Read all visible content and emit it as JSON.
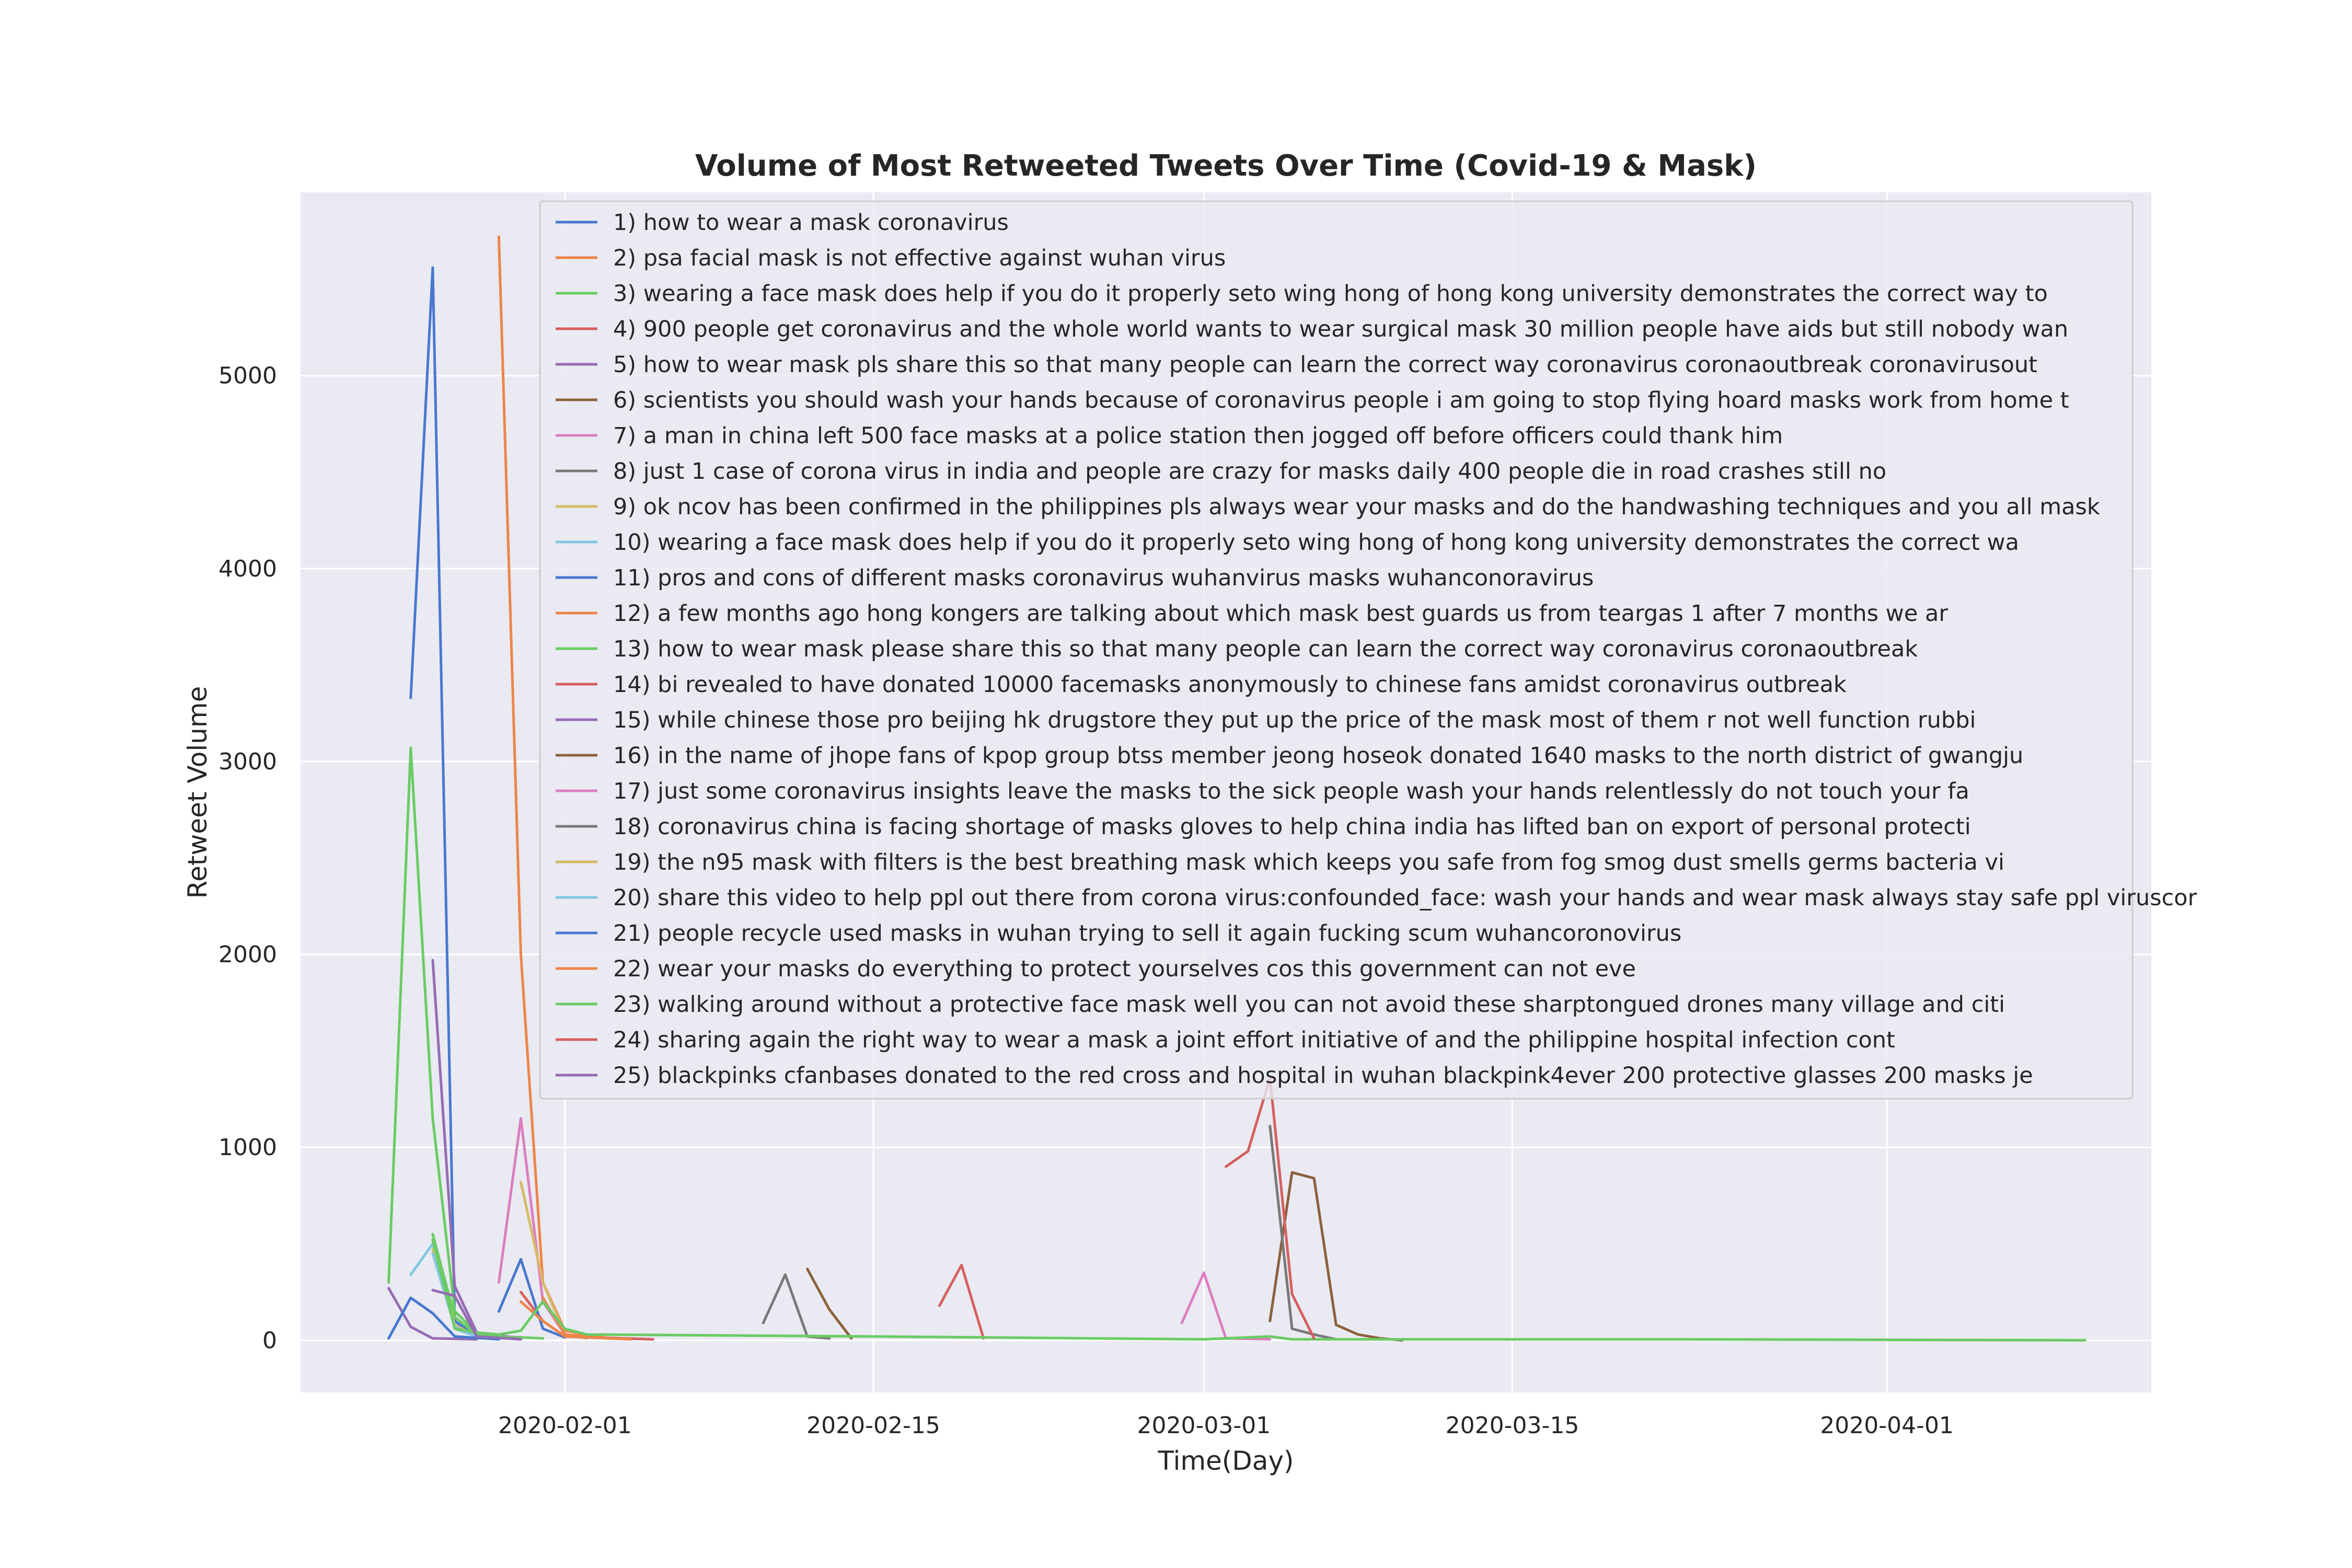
{
  "chart_data": {
    "type": "line",
    "title": "Volume of Most Retweeted Tweets Over Time (Covid-19 & Mask)",
    "xlabel": "Time(Day)",
    "ylabel": "Retweet Volume",
    "x_ticks": [
      "2020-02-01",
      "2020-02-15",
      "2020-03-01",
      "2020-03-15",
      "2020-04-01"
    ],
    "y_ticks": [
      "0",
      "1000",
      "2000",
      "3000",
      "4000",
      "5000"
    ],
    "xlim": [
      "2020-01-20",
      "2020-04-13"
    ],
    "ylim": [
      -270,
      5950
    ],
    "grid": true,
    "legend_position": "top-right",
    "colors": [
      "#4878d0",
      "#ee854a",
      "#6acc64",
      "#d65f5f",
      "#956cb4",
      "#8c613c",
      "#dc7ec0",
      "#797979",
      "#d5bb67",
      "#82c6e2"
    ],
    "series": [
      {
        "name": "1) how to wear a mask coronavirus",
        "points": [
          [
            "2020-01-25",
            3330
          ],
          [
            "2020-01-26",
            5560
          ],
          [
            "2020-01-27",
            100
          ],
          [
            "2020-01-28",
            20
          ],
          [
            "2020-01-30",
            5
          ]
        ]
      },
      {
        "name": "2) psa facial mask is not effective against wuhan virus",
        "points": [
          [
            "2020-01-29",
            5720
          ],
          [
            "2020-01-30",
            2000
          ],
          [
            "2020-01-31",
            300
          ],
          [
            "2020-02-01",
            50
          ],
          [
            "2020-02-03",
            10
          ]
        ]
      },
      {
        "name": "3) wearing a face mask does help if you do it properly seto wing hong of hong kong university demonstrates the correct way to",
        "points": [
          [
            "2020-01-24",
            300
          ],
          [
            "2020-01-25",
            3070
          ],
          [
            "2020-01-26",
            1150
          ],
          [
            "2020-01-27",
            150
          ],
          [
            "2020-01-28",
            40
          ],
          [
            "2020-01-29",
            20
          ],
          [
            "2020-01-31",
            10
          ]
        ]
      },
      {
        "name": "4) 900 people get coronavirus and the whole world wants to wear surgical mask 30 million people have aids but still nobody wan",
        "points": [
          [
            "2020-01-30",
            250
          ],
          [
            "2020-01-31",
            100
          ],
          [
            "2020-02-01",
            20
          ],
          [
            "2020-02-05",
            5
          ]
        ]
      },
      {
        "name": "5) how to wear mask  pls share this so that many people can learn the correct way coronavirus coronaoutbreak coronavirusout",
        "points": [
          [
            "2020-01-26",
            1970
          ],
          [
            "2020-01-27",
            280
          ],
          [
            "2020-01-28",
            40
          ],
          [
            "2020-01-30",
            10
          ]
        ]
      },
      {
        "name": "6) scientists you should wash your hands because of coronavirus people i am going to stop flying hoard masks work from home  t",
        "points": [
          [
            "2020-03-04",
            100
          ],
          [
            "2020-03-05",
            870
          ],
          [
            "2020-03-06",
            840
          ],
          [
            "2020-03-07",
            80
          ],
          [
            "2020-03-08",
            30
          ],
          [
            "2020-03-09",
            10
          ],
          [
            "2020-03-10",
            0
          ]
        ]
      },
      {
        "name": "7) a man in china left 500 face masks at a police station  then jogged off before officers could thank him",
        "points": [
          [
            "2020-01-29",
            300
          ],
          [
            "2020-01-30",
            1150
          ],
          [
            "2020-01-31",
            200
          ],
          [
            "2020-02-01",
            30
          ],
          [
            "2020-02-02",
            10
          ]
        ]
      },
      {
        "name": "8) just 1 case of corona virus in india and people are crazy for masks daily 400 people die in road crashes  still no",
        "points": [
          [
            "2020-02-10",
            90
          ],
          [
            "2020-02-11",
            340
          ],
          [
            "2020-02-12",
            20
          ],
          [
            "2020-02-13",
            10
          ]
        ]
      },
      {
        "name": "9) ok ncov has been confirmed in the philippines pls always wear your masks and do the handwashing techniques and you all mask",
        "points": [
          [
            "2020-01-30",
            820
          ],
          [
            "2020-01-31",
            300
          ],
          [
            "2020-02-01",
            30
          ],
          [
            "2020-02-02",
            10
          ]
        ]
      },
      {
        "name": "10) wearing a face mask does help if you do it properly seto wing hong of hong kong university demonstrates the correct wa",
        "points": [
          [
            "2020-01-25",
            340
          ],
          [
            "2020-01-26",
            500
          ],
          [
            "2020-01-27",
            60
          ],
          [
            "2020-01-28",
            20
          ]
        ]
      },
      {
        "name": "11) pros and cons of different masks  coronavirus wuhanvirus masks wuhanconoravirus",
        "points": [
          [
            "2020-01-29",
            150
          ],
          [
            "2020-01-30",
            420
          ],
          [
            "2020-01-31",
            60
          ],
          [
            "2020-02-01",
            15
          ]
        ]
      },
      {
        "name": "12) a few months ago hong kongers are talking about which mask best guards us from teargas 1 after 7 months we ar",
        "points": [
          [
            "2020-01-30",
            200
          ],
          [
            "2020-01-31",
            100
          ],
          [
            "2020-02-01",
            20
          ],
          [
            "2020-02-04",
            5
          ]
        ]
      },
      {
        "name": "13) how to wear mask  please share this so that many people can learn the correct way coronavirus coronaoutbreak",
        "points": [
          [
            "2020-01-26",
            550
          ],
          [
            "2020-01-27",
            120
          ],
          [
            "2020-01-28",
            30
          ],
          [
            "2020-01-30",
            10
          ]
        ]
      },
      {
        "name": "14) bi revealed to have donated 10000 facemasks anonymously to chinese fans amidst coronavirus outbreak",
        "points": [
          [
            "2020-02-18",
            180
          ],
          [
            "2020-02-19",
            390
          ],
          [
            "2020-02-20",
            10
          ]
        ]
      },
      {
        "name": "15) while chinese  those pro beijing hk drugstore they put up the price of the mask  most of them r not well function rubbi",
        "points": [
          [
            "2020-01-24",
            270
          ],
          [
            "2020-01-25",
            70
          ],
          [
            "2020-01-26",
            10
          ],
          [
            "2020-01-28",
            5
          ]
        ]
      },
      {
        "name": "16) in the name of jhope fans of kpop group btss member jeong hoseok donated 1640 masks to the north district of gwangju",
        "points": [
          [
            "2020-02-12",
            370
          ],
          [
            "2020-02-13",
            160
          ],
          [
            "2020-02-14",
            10
          ]
        ]
      },
      {
        "name": "17) just some coronavirus insights leave the masks to the sick people wash your hands relentlessly do not touch your fa",
        "points": [
          [
            "2020-02-29",
            90
          ],
          [
            "2020-03-01",
            350
          ],
          [
            "2020-03-02",
            10
          ],
          [
            "2020-03-04",
            5
          ]
        ]
      },
      {
        "name": "18) coronavirus china is facing shortage of masks  gloves to help china india has lifted ban on export of personal protecti",
        "points": [
          [
            "2020-03-04",
            1110
          ],
          [
            "2020-03-05",
            60
          ],
          [
            "2020-03-06",
            30
          ],
          [
            "2020-03-07",
            5
          ]
        ]
      },
      {
        "name": "19) the n95 mask with filters is the best breathing mask which keeps you safe from fog smog dust smells germs bacteria vi",
        "points": [
          [
            "2020-01-26",
            470
          ],
          [
            "2020-01-27",
            80
          ],
          [
            "2020-01-28",
            20
          ]
        ]
      },
      {
        "name": "20) share this video to help ppl out there from corona virus:confounded_face: wash your hands and wear mask always stay safe ppl viruscor",
        "points": [
          [
            "2020-01-26",
            450
          ],
          [
            "2020-01-27",
            70
          ],
          [
            "2020-01-28",
            20
          ]
        ]
      },
      {
        "name": "21) people recycle used masks in wuhan trying to sell it again fucking scum wuhancoronovirus",
        "points": [
          [
            "2020-01-24",
            10
          ],
          [
            "2020-01-25",
            220
          ],
          [
            "2020-01-26",
            140
          ],
          [
            "2020-01-27",
            20
          ],
          [
            "2020-01-29",
            5
          ]
        ]
      },
      {
        "name": "22) wear your masks do everything to protect yourselves cos this government can not eve",
        "points": [
          [
            "2020-01-31",
            220
          ],
          [
            "2020-02-01",
            30
          ],
          [
            "2020-02-03",
            10
          ]
        ]
      },
      {
        "name": "23) walking around without a protective face mask well you can not avoid these sharptongued drones many village and citi",
        "points": [
          [
            "2020-01-26",
            520
          ],
          [
            "2020-01-27",
            60
          ],
          [
            "2020-01-28",
            40
          ],
          [
            "2020-01-29",
            30
          ],
          [
            "2020-01-30",
            50
          ],
          [
            "2020-01-31",
            200
          ],
          [
            "2020-02-01",
            60
          ],
          [
            "2020-02-02",
            30
          ],
          [
            "2020-02-15",
            20
          ],
          [
            "2020-03-01",
            5
          ],
          [
            "2020-03-04",
            20
          ],
          [
            "2020-03-05",
            5
          ],
          [
            "2020-03-23",
            5
          ],
          [
            "2020-04-10",
            0
          ]
        ]
      },
      {
        "name": "24) sharing again the right way to wear a mask a joint effort initiative of and the philippine hospital infection cont",
        "points": [
          [
            "2020-03-02",
            900
          ],
          [
            "2020-03-03",
            980
          ],
          [
            "2020-03-04",
            1360
          ],
          [
            "2020-03-05",
            240
          ],
          [
            "2020-03-06",
            10
          ]
        ]
      },
      {
        "name": "25) blackpinks cfanbases donated to the red cross and hospital in wuhan blackpink4ever 200 protective glasses 200 masks je",
        "points": [
          [
            "2020-01-26",
            260
          ],
          [
            "2020-01-27",
            230
          ],
          [
            "2020-01-28",
            20
          ],
          [
            "2020-01-30",
            5
          ]
        ]
      }
    ]
  }
}
